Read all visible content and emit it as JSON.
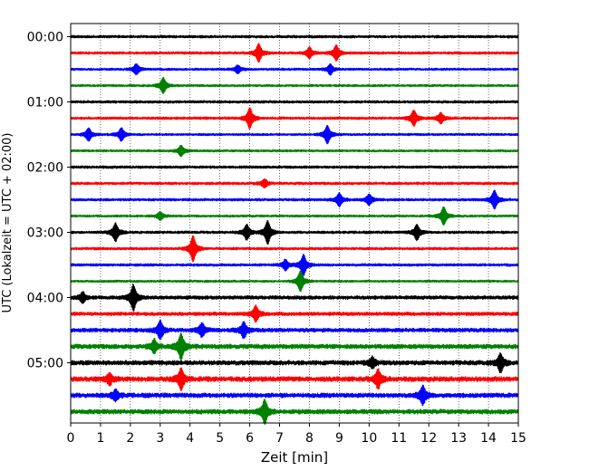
{
  "chart_data": {
    "type": "line",
    "title": "",
    "xlabel": "Zeit  [min]",
    "ylabel": "UTC (Lokalzeit = UTC + 02:00)",
    "xlim": [
      0,
      15
    ],
    "x_ticks": [
      "0",
      "1",
      "2",
      "3",
      "4",
      "5",
      "6",
      "7",
      "8",
      "9",
      "10",
      "11",
      "12",
      "13",
      "14",
      "15"
    ],
    "y_ticks": [
      {
        "label": "00:00",
        "trace": 0
      },
      {
        "label": "01:00",
        "trace": 4
      },
      {
        "label": "02:00",
        "trace": 8
      },
      {
        "label": "03:00",
        "trace": 12
      },
      {
        "label": "04:00",
        "trace": 16
      },
      {
        "label": "05:00",
        "trace": 20
      }
    ],
    "grid": "vertical dotted lines at each minute",
    "color_cycle": [
      "#000000",
      "#ff0000",
      "#0000ff",
      "#008000"
    ],
    "traces": [
      {
        "start": "00:00",
        "color": "#000000",
        "amplitude": 1.5,
        "events": []
      },
      {
        "start": "00:15",
        "color": "#ff0000",
        "amplitude": 1.5,
        "events": [
          [
            6.3,
            7
          ],
          [
            8.9,
            6
          ],
          [
            8.0,
            4
          ]
        ]
      },
      {
        "start": "00:30",
        "color": "#0000ff",
        "amplitude": 1.3,
        "events": [
          [
            2.2,
            4
          ],
          [
            8.7,
            4
          ],
          [
            5.6,
            3
          ]
        ]
      },
      {
        "start": "00:45",
        "color": "#008000",
        "amplitude": 1.3,
        "events": [
          [
            3.1,
            6
          ]
        ]
      },
      {
        "start": "01:00",
        "color": "#000000",
        "amplitude": 1.5,
        "events": []
      },
      {
        "start": "01:15",
        "color": "#ff0000",
        "amplitude": 1.5,
        "events": [
          [
            6.0,
            8
          ],
          [
            11.5,
            6
          ],
          [
            12.4,
            4
          ]
        ]
      },
      {
        "start": "01:30",
        "color": "#0000ff",
        "amplitude": 1.3,
        "events": [
          [
            0.6,
            5
          ],
          [
            1.7,
            5
          ],
          [
            8.6,
            7
          ]
        ]
      },
      {
        "start": "01:45",
        "color": "#008000",
        "amplitude": 1.3,
        "events": [
          [
            3.7,
            4
          ]
        ]
      },
      {
        "start": "02:00",
        "color": "#000000",
        "amplitude": 1.5,
        "events": []
      },
      {
        "start": "02:15",
        "color": "#ff0000",
        "amplitude": 1.5,
        "events": [
          [
            6.5,
            3
          ]
        ]
      },
      {
        "start": "02:30",
        "color": "#0000ff",
        "amplitude": 1.5,
        "events": [
          [
            9.0,
            5
          ],
          [
            10.0,
            4
          ],
          [
            14.2,
            7
          ]
        ]
      },
      {
        "start": "02:45",
        "color": "#008000",
        "amplitude": 1.3,
        "events": [
          [
            12.5,
            7
          ],
          [
            3.0,
            3
          ]
        ]
      },
      {
        "start": "03:00",
        "color": "#000000",
        "amplitude": 1.5,
        "events": [
          [
            1.5,
            7
          ],
          [
            5.9,
            6
          ],
          [
            6.6,
            9
          ],
          [
            11.6,
            6
          ]
        ]
      },
      {
        "start": "03:15",
        "color": "#ff0000",
        "amplitude": 1.5,
        "events": [
          [
            4.1,
            10
          ]
        ]
      },
      {
        "start": "03:30",
        "color": "#0000ff",
        "amplitude": 1.5,
        "events": [
          [
            7.8,
            8
          ],
          [
            7.2,
            4
          ]
        ]
      },
      {
        "start": "03:45",
        "color": "#008000",
        "amplitude": 1.3,
        "events": [
          [
            7.7,
            8
          ]
        ]
      },
      {
        "start": "04:00",
        "color": "#000000",
        "amplitude": 2.0,
        "events": [
          [
            2.1,
            10
          ],
          [
            0.4,
            4
          ]
        ]
      },
      {
        "start": "04:15",
        "color": "#ff0000",
        "amplitude": 2.0,
        "events": [
          [
            6.2,
            6
          ]
        ]
      },
      {
        "start": "04:30",
        "color": "#0000ff",
        "amplitude": 2.3,
        "events": [
          [
            3.0,
            7
          ],
          [
            4.4,
            5
          ],
          [
            5.8,
            6
          ]
        ]
      },
      {
        "start": "04:45",
        "color": "#008000",
        "amplitude": 2.6,
        "events": [
          [
            3.7,
            10
          ],
          [
            2.8,
            5
          ]
        ]
      },
      {
        "start": "05:00",
        "color": "#000000",
        "amplitude": 2.6,
        "events": [
          [
            14.4,
            7
          ],
          [
            10.1,
            4
          ]
        ]
      },
      {
        "start": "05:15",
        "color": "#ff0000",
        "amplitude": 2.8,
        "events": [
          [
            3.7,
            8
          ],
          [
            10.3,
            7
          ],
          [
            1.3,
            4
          ]
        ]
      },
      {
        "start": "05:30",
        "color": "#0000ff",
        "amplitude": 2.6,
        "events": [
          [
            11.8,
            7
          ],
          [
            1.5,
            4
          ]
        ]
      },
      {
        "start": "05:45",
        "color": "#008000",
        "amplitude": 2.6,
        "events": [
          [
            6.5,
            9
          ]
        ]
      }
    ]
  }
}
